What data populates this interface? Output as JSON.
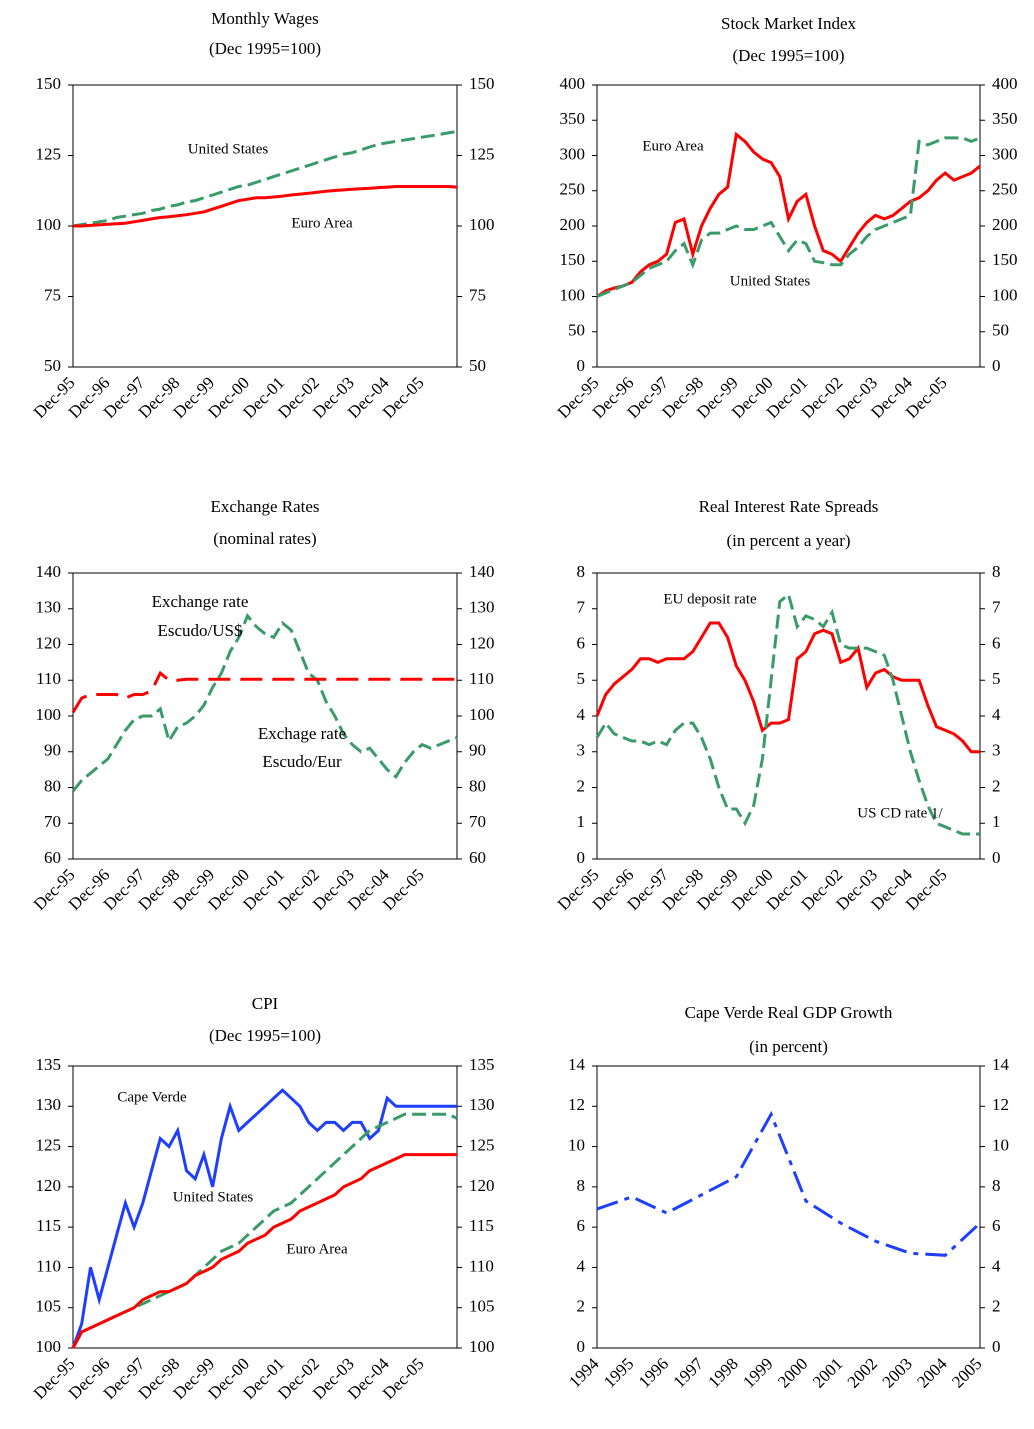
{
  "chart_data": [
    {
      "type": "line",
      "title": "Monthly Wages",
      "subtitle": "(Dec 1995=100)",
      "categories": [
        "Dec-95",
        null,
        null,
        null,
        "Dec-96",
        null,
        null,
        null,
        "Dec-97",
        null,
        null,
        null,
        "Dec-98",
        null,
        null,
        null,
        "Dec-99",
        null,
        null,
        null,
        "Dec-00",
        null,
        null,
        null,
        "Dec-01",
        null,
        null,
        null,
        "Dec-02",
        null,
        null,
        null,
        "Dec-03",
        null,
        null,
        null,
        "Dec-04",
        null,
        null,
        null,
        "Dec-05",
        null,
        null,
        null,
        null
      ],
      "series": [
        {
          "name": "United States",
          "color": "#3a9b6a",
          "dash": "dashed",
          "values": [
            100,
            100.5,
            101,
            101.5,
            102,
            103,
            103.5,
            104,
            104.5,
            105.5,
            106,
            107,
            107.5,
            108.5,
            109,
            110,
            111,
            112,
            113,
            114,
            114.5,
            115.5,
            116.5,
            117.5,
            118.5,
            119.5,
            120.5,
            121.5,
            122.5,
            123.5,
            124.5,
            125.5,
            126,
            127,
            128,
            129,
            129.5,
            130,
            130.5,
            131,
            131.5,
            132,
            132.5,
            133,
            133.5
          ]
        },
        {
          "name": "Euro Area",
          "color": "#ff0000",
          "dash": "solid",
          "values": [
            100,
            100,
            100.2,
            100.4,
            100.6,
            100.8,
            101,
            101.5,
            102,
            102.5,
            103,
            103.3,
            103.6,
            104,
            104.5,
            105,
            106,
            107,
            108,
            109,
            109.5,
            110,
            110,
            110.3,
            110.6,
            111,
            111.3,
            111.6,
            112,
            112.3,
            112.6,
            112.8,
            113,
            113.2,
            113.4,
            113.6,
            113.8,
            114,
            114,
            114,
            114,
            114,
            114,
            114,
            113.8
          ]
        }
      ],
      "ylim": [
        50,
        150
      ],
      "yticks": [
        50,
        75,
        100,
        125,
        150
      ],
      "y2lim": [
        50,
        150
      ],
      "y2ticks": [
        50,
        75,
        100,
        125,
        150
      ]
    },
    {
      "type": "line",
      "title": "Stock Market Index",
      "subtitle": "(Dec 1995=100)",
      "categories": [
        "Dec-95",
        null,
        null,
        null,
        "Dec-96",
        null,
        null,
        null,
        "Dec-97",
        null,
        null,
        null,
        "Dec-98",
        null,
        null,
        null,
        "Dec-99",
        null,
        null,
        null,
        "Dec-00",
        null,
        null,
        null,
        "Dec-01",
        null,
        null,
        null,
        "Dec-02",
        null,
        null,
        null,
        "Dec-03",
        null,
        null,
        null,
        "Dec-04",
        null,
        null,
        null,
        "Dec-05",
        null,
        null,
        null,
        null
      ],
      "series": [
        {
          "name": "Euro Area",
          "color": "#ff0000",
          "dash": "solid",
          "values": [
            100,
            108,
            112,
            115,
            120,
            135,
            145,
            150,
            160,
            205,
            210,
            160,
            200,
            225,
            245,
            255,
            330,
            320,
            305,
            295,
            290,
            270,
            210,
            235,
            245,
            200,
            165,
            160,
            150,
            170,
            190,
            205,
            215,
            210,
            215,
            225,
            235,
            240,
            250,
            265,
            275,
            265,
            270,
            275,
            285
          ]
        },
        {
          "name": "United States",
          "color": "#3a9b6a",
          "dash": "dashed",
          "values": [
            100,
            105,
            110,
            115,
            120,
            130,
            140,
            145,
            150,
            165,
            175,
            145,
            180,
            190,
            190,
            195,
            200,
            195,
            195,
            200,
            205,
            185,
            165,
            180,
            175,
            150,
            148,
            145,
            145,
            160,
            170,
            185,
            195,
            200,
            205,
            210,
            215,
            320,
            315,
            320,
            325,
            325,
            325,
            320,
            325
          ]
        }
      ],
      "ylim": [
        0,
        400
      ],
      "yticks": [
        0,
        50,
        100,
        150,
        200,
        250,
        300,
        350,
        400
      ],
      "y2lim": [
        0,
        400
      ],
      "y2ticks": [
        0,
        50,
        100,
        150,
        200,
        250,
        300,
        350,
        400
      ]
    },
    {
      "type": "line",
      "title": "Exchange Rates",
      "subtitle": "(nominal rates)",
      "categories": [
        "Dec-95",
        null,
        null,
        null,
        "Dec-96",
        null,
        null,
        null,
        "Dec-97",
        null,
        null,
        null,
        "Dec-98",
        null,
        null,
        null,
        "Dec-99",
        null,
        null,
        null,
        "Dec-00",
        null,
        null,
        null,
        "Dec-01",
        null,
        null,
        null,
        "Dec-02",
        null,
        null,
        null,
        "Dec-03",
        null,
        null,
        null,
        "Dec-04",
        null,
        null,
        null,
        "Dec-05",
        null,
        null,
        null,
        null
      ],
      "series": [
        {
          "name": "Escudo/US$",
          "color": "#3a9b6a",
          "dash": "dashed",
          "values": [
            79,
            82,
            84,
            86,
            88,
            92,
            96,
            99,
            100,
            100,
            102,
            93,
            97,
            98,
            100,
            103,
            108,
            112,
            118,
            122,
            128,
            125,
            123,
            122,
            126,
            124,
            118,
            112,
            110,
            104,
            100,
            95,
            92,
            90,
            91,
            88,
            85,
            83,
            87,
            90,
            92,
            91,
            92,
            93,
            94
          ]
        },
        {
          "name": "Escudo/Eur",
          "color": "#ff0000",
          "dash": "longdash",
          "values": [
            101,
            105,
            106,
            106,
            106,
            106,
            105,
            106,
            106,
            107,
            112,
            110,
            110,
            110.3,
            110.3,
            110.3,
            110.3,
            110.3,
            110.3,
            110.3,
            110.3,
            110.3,
            110.3,
            110.3,
            110.3,
            110.3,
            110.3,
            110.3,
            110.3,
            110.3,
            110.3,
            110.3,
            110.3,
            110.3,
            110.3,
            110.3,
            110.3,
            110.3,
            110.3,
            110.3,
            110.3,
            110.3,
            110.3,
            110.3,
            110.3
          ]
        }
      ],
      "annotations": [
        "Exchange rate",
        "Escudo/US$",
        "Exchage rate",
        "Escudo/Eur"
      ],
      "ylim": [
        60,
        140
      ],
      "yticks": [
        60,
        70,
        80,
        90,
        100,
        110,
        120,
        130,
        140
      ],
      "y2lim": [
        60,
        140
      ],
      "y2ticks": [
        60,
        70,
        80,
        90,
        100,
        110,
        120,
        130,
        140
      ]
    },
    {
      "type": "line",
      "title": "Real Interest Rate Spreads",
      "subtitle": "(in percent a year)",
      "categories": [
        "Dec-95",
        null,
        null,
        null,
        "Dec-96",
        null,
        null,
        null,
        "Dec-97",
        null,
        null,
        null,
        "Dec-98",
        null,
        null,
        null,
        "Dec-99",
        null,
        null,
        null,
        "Dec-00",
        null,
        null,
        null,
        "Dec-01",
        null,
        null,
        null,
        "Dec-02",
        null,
        null,
        null,
        "Dec-03",
        null,
        null,
        null,
        "Dec-04",
        null,
        null,
        null,
        "Dec-05",
        null,
        null,
        null,
        null
      ],
      "series": [
        {
          "name": "EU deposit rate",
          "color": "#ff0000",
          "dash": "solid",
          "values": [
            4,
            4.6,
            4.9,
            5.1,
            5.3,
            5.6,
            5.6,
            5.5,
            5.6,
            5.6,
            5.6,
            5.8,
            6.2,
            6.6,
            6.6,
            6.2,
            5.4,
            5.0,
            4.4,
            3.6,
            3.8,
            3.8,
            3.9,
            5.6,
            5.8,
            6.3,
            6.4,
            6.3,
            5.5,
            5.6,
            5.9,
            4.8,
            5.2,
            5.3,
            5.1,
            5.0,
            5.0,
            5.0,
            4.3,
            3.7,
            3.6,
            3.5,
            3.3,
            3.0,
            3.0
          ]
        },
        {
          "name": "US CD rate 1/",
          "color": "#3a9b6a",
          "dash": "dashed",
          "values": [
            3.4,
            3.8,
            3.5,
            3.4,
            3.3,
            3.3,
            3.2,
            3.3,
            3.2,
            3.6,
            3.8,
            3.8,
            3.4,
            2.8,
            2.0,
            1.4,
            1.4,
            1.0,
            1.5,
            2.8,
            5.0,
            7.2,
            7.4,
            6.5,
            6.8,
            6.7,
            6.5,
            6.9,
            6.0,
            5.9,
            5.9,
            5.9,
            5.8,
            5.7,
            5.0,
            4.0,
            3.0,
            2.2,
            1.5,
            1.0,
            0.9,
            0.8,
            0.7,
            0.7,
            0.7
          ]
        }
      ],
      "ylim": [
        0,
        8
      ],
      "yticks": [
        0,
        1,
        2,
        3,
        4,
        5,
        6,
        7,
        8
      ],
      "y2lim": [
        0,
        8
      ],
      "y2ticks": [
        0,
        1,
        2,
        3,
        4,
        5,
        6,
        7,
        8
      ]
    },
    {
      "type": "line",
      "title": "CPI",
      "subtitle": "(Dec 1995=100)",
      "categories": [
        "Dec-95",
        null,
        null,
        null,
        "Dec-96",
        null,
        null,
        null,
        "Dec-97",
        null,
        null,
        null,
        "Dec-98",
        null,
        null,
        null,
        "Dec-99",
        null,
        null,
        null,
        "Dec-00",
        null,
        null,
        null,
        "Dec-01",
        null,
        null,
        null,
        "Dec-02",
        null,
        null,
        null,
        "Dec-03",
        null,
        null,
        null,
        "Dec-04",
        null,
        null,
        null,
        "Dec-05",
        null,
        null,
        null,
        null
      ],
      "series": [
        {
          "name": "Cape Verde",
          "color": "#1f3fff",
          "dash": "solid",
          "values": [
            100,
            103,
            110,
            106,
            110,
            114,
            118,
            115,
            118,
            122,
            126,
            125,
            127,
            122,
            121,
            124,
            120,
            126,
            130,
            127,
            128,
            129,
            130,
            131,
            132,
            131,
            130,
            128,
            127,
            128,
            128,
            127,
            128,
            128,
            126,
            127,
            131,
            130,
            130,
            130,
            130,
            130,
            130,
            130,
            130
          ]
        },
        {
          "name": "United States",
          "color": "#3a9b6a",
          "dash": "dashed",
          "values": [
            100,
            102,
            102.5,
            103,
            103.5,
            104,
            104.5,
            105,
            105.5,
            106,
            106.5,
            107,
            107.5,
            108,
            109,
            110,
            111,
            112,
            112.5,
            113,
            114,
            115,
            116,
            117,
            117.5,
            118,
            119,
            120,
            121,
            122,
            123,
            124,
            125,
            126,
            127,
            127.5,
            128,
            128.5,
            129,
            129,
            129,
            129,
            129,
            129,
            128.5
          ]
        },
        {
          "name": "Euro Area",
          "color": "#ff0000",
          "dash": "solid",
          "values": [
            100,
            102,
            102.5,
            103,
            103.5,
            104,
            104.5,
            105,
            106,
            106.5,
            107,
            107,
            107.5,
            108,
            109,
            109.5,
            110,
            111,
            111.5,
            112,
            113,
            113.5,
            114,
            115,
            115.5,
            116,
            117,
            117.5,
            118,
            118.5,
            119,
            120,
            120.5,
            121,
            122,
            122.5,
            123,
            123.5,
            124,
            124,
            124,
            124,
            124,
            124,
            124
          ]
        }
      ],
      "ylim": [
        100,
        135
      ],
      "yticks": [
        100,
        105,
        110,
        115,
        120,
        125,
        130,
        135
      ],
      "y2lim": [
        100,
        135
      ],
      "y2ticks": [
        100,
        105,
        110,
        115,
        120,
        125,
        130,
        135
      ]
    },
    {
      "type": "line",
      "title": "Cape Verde Real GDP Growth",
      "subtitle": "(in percent)",
      "categories": [
        "1994",
        "1995",
        "1996",
        "1997",
        "1998",
        "1999",
        "2000",
        "2001",
        "2002",
        "2003",
        "2004",
        "2005"
      ],
      "series": [
        {
          "name": "Cape Verde",
          "color": "#1f3fff",
          "dash": "dashdot",
          "values": [
            6.9,
            7.5,
            6.7,
            7.6,
            8.5,
            11.6,
            7.3,
            6.2,
            5.3,
            4.7,
            4.6,
            6.2
          ]
        }
      ],
      "ylim": [
        0,
        14
      ],
      "yticks": [
        0,
        2,
        4,
        6,
        8,
        10,
        12,
        14
      ],
      "y2lim": [
        0,
        14
      ],
      "y2ticks": [
        0,
        2,
        4,
        6,
        8,
        10,
        12,
        14
      ]
    }
  ]
}
